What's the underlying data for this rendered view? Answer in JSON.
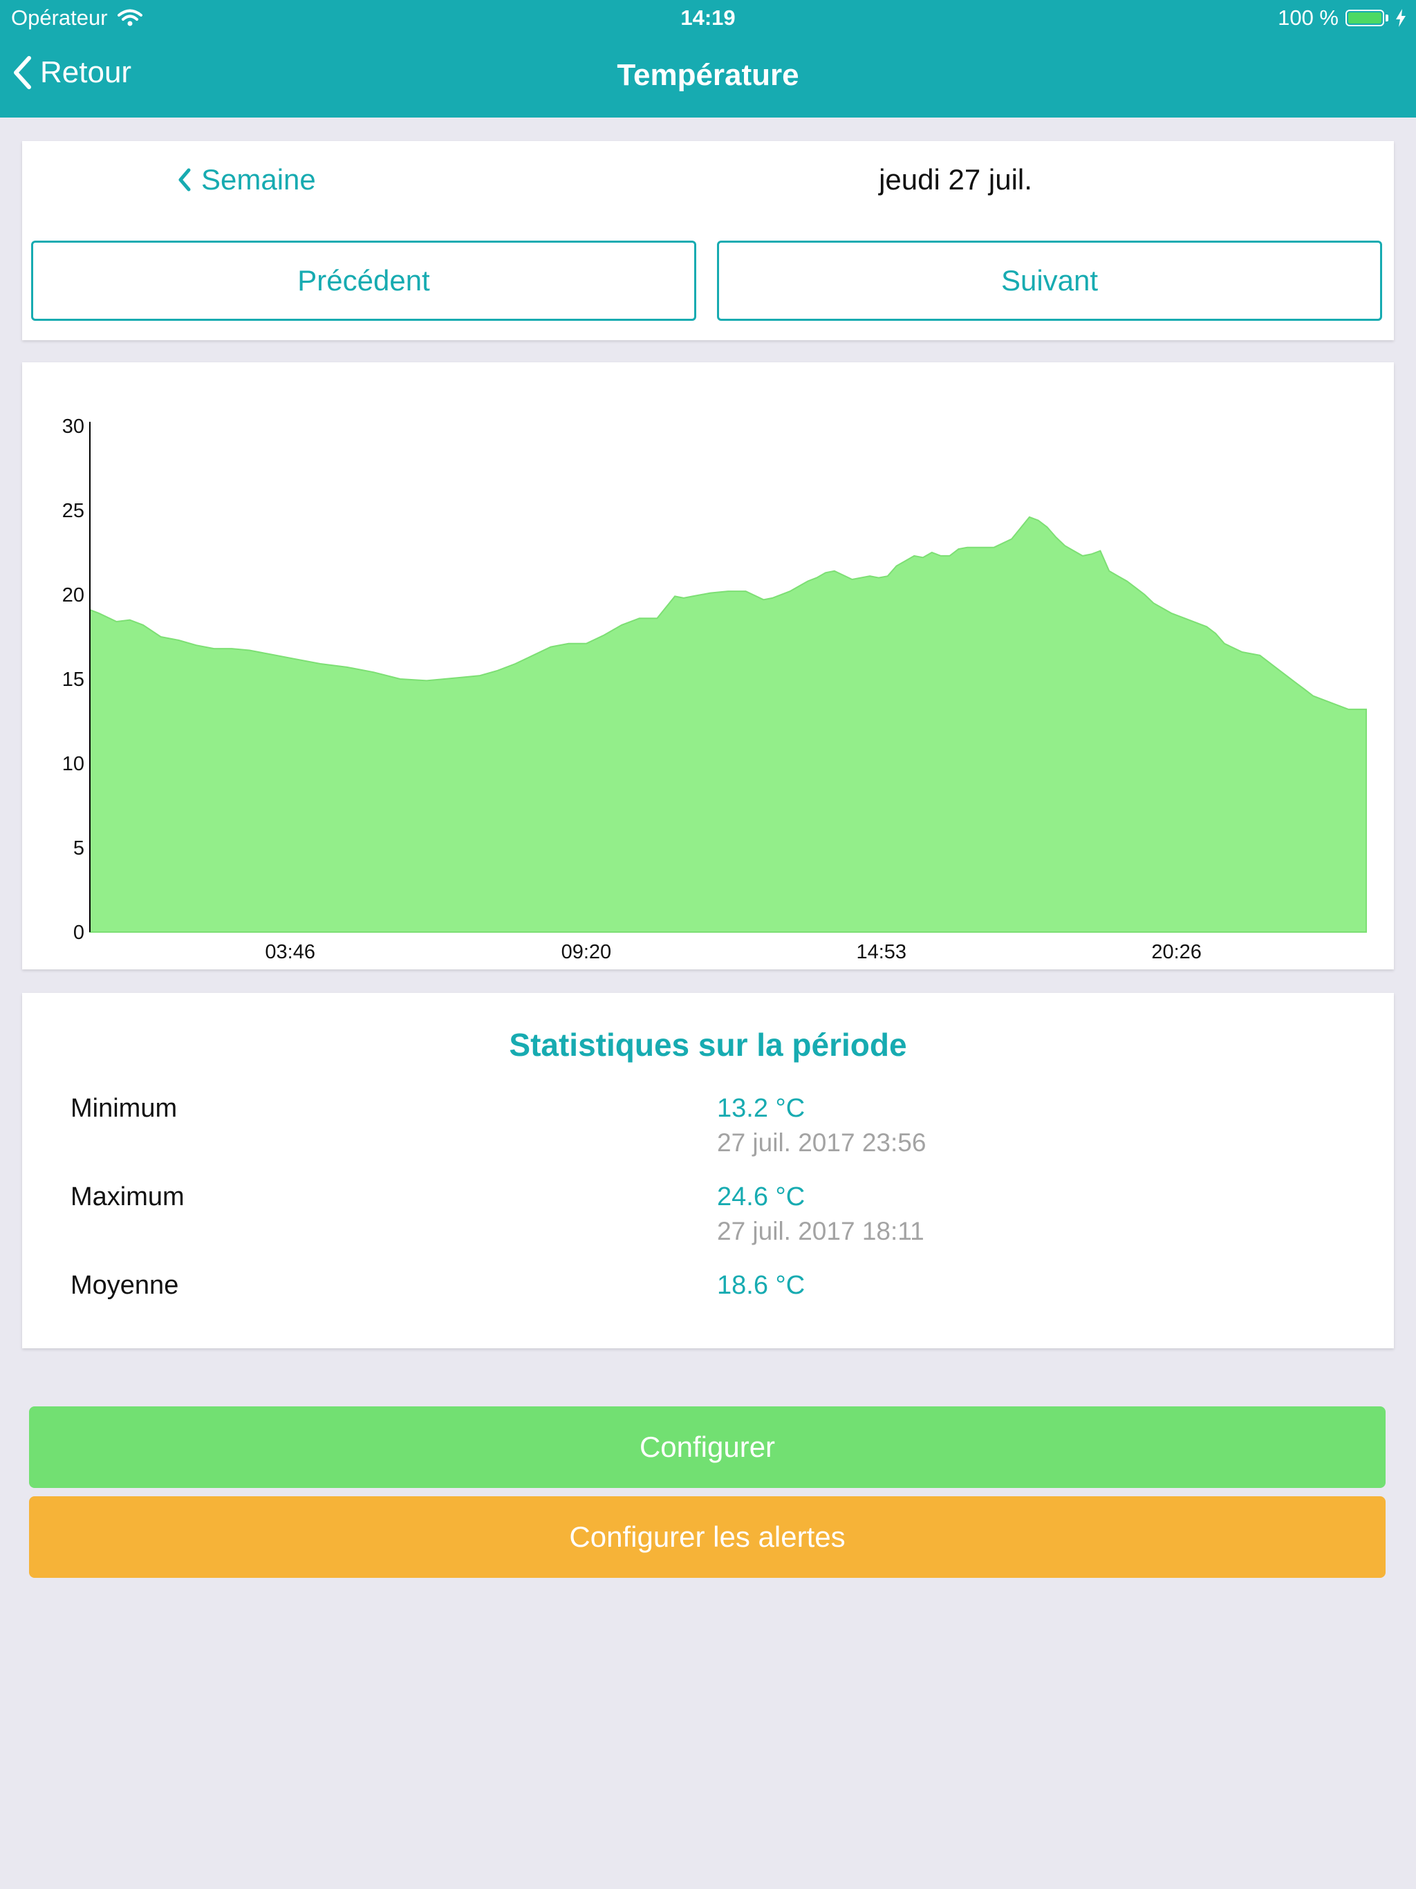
{
  "status_bar": {
    "carrier": "Opérateur",
    "time": "14:19",
    "battery": "100 %",
    "battery_level_percent": 100
  },
  "header": {
    "back_label": "Retour",
    "title": "Température"
  },
  "navigation": {
    "week_link": "Semaine",
    "date": "jeudi 27 juil.",
    "previous": "Précédent",
    "next": "Suivant"
  },
  "chart_data": {
    "type": "area",
    "title": "",
    "xlabel": "",
    "ylabel": "",
    "ylim": [
      0,
      30
    ],
    "yticks": [
      0,
      5,
      10,
      15,
      20,
      25,
      30
    ],
    "xlim": [
      0,
      1440
    ],
    "xticks": [
      {
        "t": 226,
        "label": "03:46"
      },
      {
        "t": 560,
        "label": "09:20"
      },
      {
        "t": 893,
        "label": "14:53"
      },
      {
        "t": 1226,
        "label": "20:26"
      }
    ],
    "grid": false,
    "legend": "none",
    "fill_color": "#93ee8a",
    "line_color": "#7ddf74",
    "series": [
      {
        "x": [
          0,
          10,
          30,
          45,
          60,
          80,
          100,
          120,
          140,
          160,
          180,
          200,
          230,
          260,
          290,
          320,
          350,
          380,
          400,
          420,
          440,
          460,
          480,
          500,
          520,
          540,
          560,
          580,
          600,
          620,
          640,
          660,
          670,
          680,
          700,
          720,
          740,
          760,
          770,
          790,
          800,
          810,
          820,
          830,
          840,
          860,
          880,
          890,
          900,
          910,
          920,
          930,
          940,
          950,
          960,
          970,
          980,
          990,
          1000,
          1020,
          1040,
          1060,
          1070,
          1080,
          1090,
          1100,
          1110,
          1120,
          1130,
          1140,
          1150,
          1160,
          1170,
          1180,
          1190,
          1200,
          1210,
          1220,
          1240,
          1260,
          1270,
          1280,
          1300,
          1320,
          1340,
          1360,
          1370,
          1380,
          1400,
          1420,
          1440
        ],
        "y": [
          19.1,
          18.9,
          18.4,
          18.5,
          18.2,
          17.5,
          17.3,
          17.0,
          16.8,
          16.8,
          16.7,
          16.5,
          16.2,
          15.9,
          15.7,
          15.4,
          15.0,
          14.9,
          15.0,
          15.1,
          15.2,
          15.5,
          15.9,
          16.4,
          16.9,
          17.1,
          17.1,
          17.6,
          18.2,
          18.6,
          18.6,
          19.9,
          19.8,
          19.9,
          20.1,
          20.2,
          20.2,
          19.7,
          19.8,
          20.2,
          20.5,
          20.8,
          21.0,
          21.3,
          21.4,
          20.9,
          21.1,
          21.0,
          21.1,
          21.7,
          22.0,
          22.3,
          22.2,
          22.5,
          22.3,
          22.3,
          22.7,
          22.8,
          22.8,
          22.8,
          23.3,
          24.6,
          24.4,
          24.0,
          23.4,
          22.9,
          22.6,
          22.3,
          22.4,
          22.6,
          21.4,
          21.1,
          20.8,
          20.4,
          20.0,
          19.5,
          19.2,
          18.9,
          18.5,
          18.1,
          17.7,
          17.1,
          16.6,
          16.4,
          15.6,
          14.8,
          14.4,
          14.0,
          13.6,
          13.2,
          13.2
        ]
      }
    ]
  },
  "stats": {
    "title": "Statistiques sur la période",
    "minimum": {
      "label": "Minimum",
      "value": "13.2 °C",
      "date": "27 juil. 2017 23:56"
    },
    "maximum": {
      "label": "Maximum",
      "value": "24.6 °C",
      "date": "27 juil. 2017 18:11"
    },
    "average": {
      "label": "Moyenne",
      "value": "18.6 °C"
    }
  },
  "actions": {
    "configure": "Configurer",
    "configure_alerts": "Configurer les alertes"
  },
  "colors": {
    "accent": "#17abb1",
    "configure_button": "#72e072",
    "alerts_button": "#f6b338",
    "background": "#e9e8f0"
  }
}
